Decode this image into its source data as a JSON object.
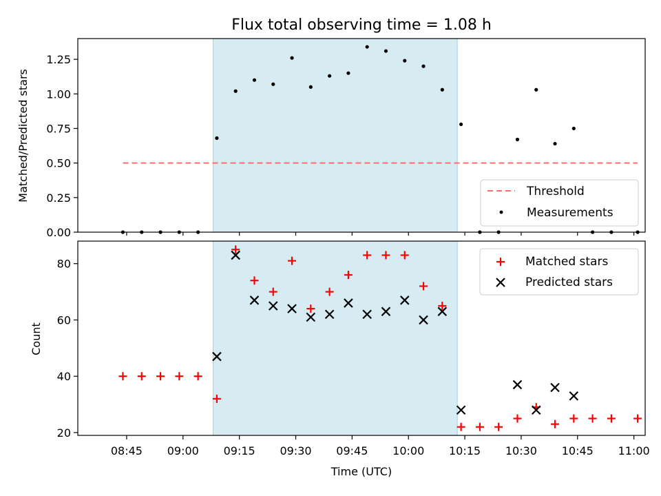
{
  "chart_data": [
    {
      "type": "scatter",
      "title": "Flux total observing time = 1.08 h",
      "xlabel": "",
      "ylabel": "Matched/Predicted stars",
      "ylim": [
        0,
        1.4
      ],
      "yticks": [
        "0.00",
        "0.25",
        "0.50",
        "0.75",
        "1.00",
        "1.25"
      ],
      "ytick_values": [
        0,
        0.25,
        0.5,
        0.75,
        1.0,
        1.25
      ],
      "xlim": [
        "08:32",
        "11:03"
      ],
      "shaded_span": [
        "09:08",
        "10:13"
      ],
      "shade_color": "#add8e6",
      "threshold": {
        "name": "Threshold",
        "value": 0.5,
        "x_start": "08:44",
        "x_end": "11:01",
        "color": "#ff6b6b"
      },
      "series": [
        {
          "name": "Measurements",
          "marker": "dot",
          "color": "#000000",
          "x": [
            "08:44",
            "08:49",
            "08:54",
            "08:59",
            "09:04",
            "09:09",
            "09:14",
            "09:19",
            "09:24",
            "09:29",
            "09:34",
            "09:39",
            "09:44",
            "09:49",
            "09:54",
            "09:59",
            "10:04",
            "10:09",
            "10:14",
            "10:19",
            "10:24",
            "10:29",
            "10:34",
            "10:39",
            "10:44",
            "10:49",
            "10:54",
            "11:01"
          ],
          "y": [
            0,
            0,
            0,
            0,
            0,
            0.68,
            1.02,
            1.1,
            1.07,
            1.26,
            1.05,
            1.13,
            1.15,
            1.34,
            1.31,
            1.24,
            1.2,
            1.03,
            0.78,
            0,
            0,
            0.67,
            1.03,
            0.64,
            0.75,
            0,
            0,
            0
          ]
        }
      ],
      "legend": {
        "position": "lower-right",
        "entries": [
          "Threshold",
          "Measurements"
        ]
      },
      "grid": false
    },
    {
      "type": "scatter",
      "title": "",
      "xlabel": "Time (UTC)",
      "ylabel": "Count",
      "ylim": [
        19,
        88
      ],
      "yticks": [
        "20",
        "40",
        "60",
        "80"
      ],
      "ytick_values": [
        20,
        40,
        60,
        80
      ],
      "xticks": [
        "08:45",
        "09:00",
        "09:15",
        "09:30",
        "09:45",
        "10:00",
        "10:15",
        "10:30",
        "10:45",
        "11:00"
      ],
      "xlim": [
        "08:32",
        "11:03"
      ],
      "shaded_span": [
        "09:08",
        "10:13"
      ],
      "shade_color": "#add8e6",
      "series": [
        {
          "name": "Matched stars",
          "marker": "plus",
          "color": "#ff0000",
          "x": [
            "08:44",
            "08:49",
            "08:54",
            "08:59",
            "09:04",
            "09:09",
            "09:14",
            "09:19",
            "09:24",
            "09:29",
            "09:34",
            "09:39",
            "09:44",
            "09:49",
            "09:54",
            "09:59",
            "10:04",
            "10:09",
            "10:14",
            "10:19",
            "10:24",
            "10:29",
            "10:34",
            "10:39",
            "10:44",
            "10:49",
            "10:54",
            "11:01"
          ],
          "y": [
            40,
            40,
            40,
            40,
            40,
            32,
            85,
            74,
            70,
            81,
            64,
            70,
            76,
            83,
            83,
            83,
            72,
            65,
            22,
            22,
            22,
            25,
            29,
            23,
            25,
            25,
            25,
            25
          ]
        },
        {
          "name": "Predicted stars",
          "marker": "x",
          "color": "#000000",
          "x": [
            "09:09",
            "09:14",
            "09:19",
            "09:24",
            "09:29",
            "09:34",
            "09:39",
            "09:44",
            "09:49",
            "09:54",
            "09:59",
            "10:04",
            "10:09",
            "10:14",
            "10:29",
            "10:34",
            "10:39",
            "10:44"
          ],
          "y": [
            47,
            83,
            67,
            65,
            64,
            61,
            62,
            66,
            62,
            63,
            67,
            60,
            63,
            28,
            37,
            28,
            36,
            33
          ]
        }
      ],
      "legend": {
        "position": "upper-right",
        "entries": [
          "Matched stars",
          "Predicted stars"
        ]
      },
      "grid": false
    }
  ]
}
